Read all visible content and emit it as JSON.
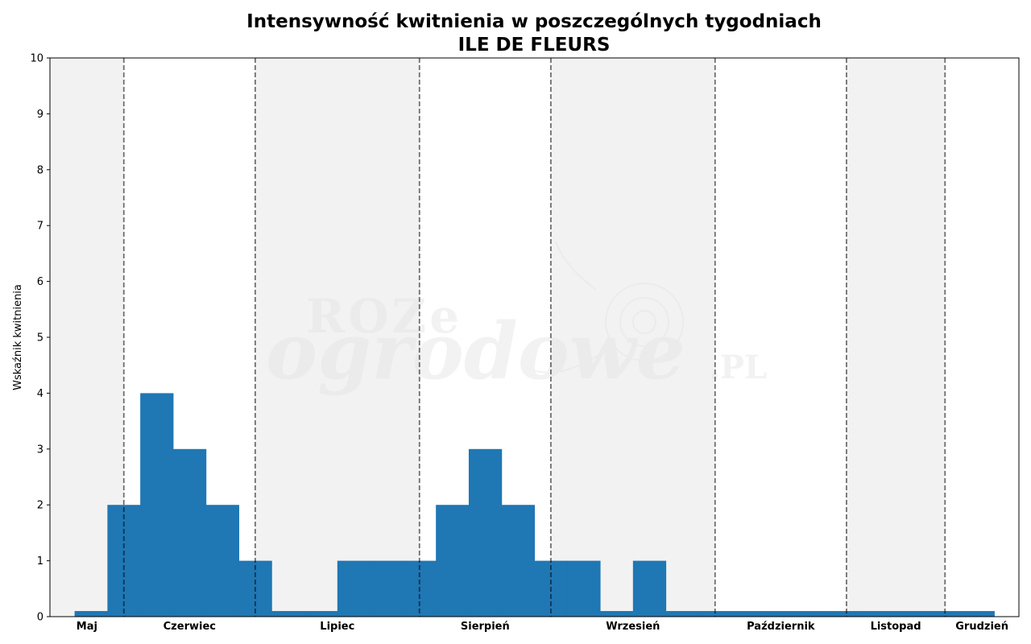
{
  "chart_data": {
    "type": "bar",
    "title": "Intensywność kwitnienia w poszczególnych tygodniach",
    "subtitle": "ILE DE FLEURS",
    "xlabel": "",
    "ylabel": "Wskaźnik kwitnienia",
    "ylim": [
      0,
      10
    ],
    "yticks": [
      "0",
      "1",
      "2",
      "3",
      "4",
      "5",
      "6",
      "7",
      "8",
      "9",
      "10"
    ],
    "grid": false,
    "weeks": [
      1,
      2,
      3,
      4,
      5,
      6,
      7,
      8,
      9,
      10,
      11,
      12,
      13,
      14,
      15,
      16,
      17,
      18,
      19,
      20,
      21,
      22,
      23,
      24,
      25,
      26,
      27,
      28
    ],
    "values": [
      0.1,
      2,
      4,
      3,
      2,
      1,
      0.1,
      0.1,
      1,
      1,
      1,
      2,
      3,
      2,
      1,
      1,
      0.1,
      1,
      0.1,
      0.1,
      0.1,
      0.1,
      0.1,
      0.1,
      0.1,
      0.1,
      0.1,
      0.1
    ],
    "bar_color": "#1f77b4",
    "week_range": [
      -0.25,
      29.25
    ],
    "months": [
      {
        "label": "Maj",
        "start": -0.25,
        "end": 2,
        "shaded": true
      },
      {
        "label": "Czerwiec",
        "start": 2,
        "end": 6,
        "shaded": false
      },
      {
        "label": "Lipiec",
        "start": 6,
        "end": 11,
        "shaded": true
      },
      {
        "label": "Sierpień",
        "start": 11,
        "end": 15,
        "shaded": false
      },
      {
        "label": "Wrzesień",
        "start": 15,
        "end": 20,
        "shaded": true
      },
      {
        "label": "Październik",
        "start": 20,
        "end": 24,
        "shaded": false
      },
      {
        "label": "Listopad",
        "start": 24,
        "end": 27,
        "shaded": true
      },
      {
        "label": "Grudzień",
        "start": 27,
        "end": 29.25,
        "shaded": false
      }
    ],
    "month_boundaries": [
      2,
      6,
      11,
      15,
      20,
      24,
      27
    ],
    "shade_color": "#f2f2f2",
    "watermark": {
      "line1": "ROZe",
      "line2": "ogrodowe",
      "suffix": ".PL"
    }
  }
}
